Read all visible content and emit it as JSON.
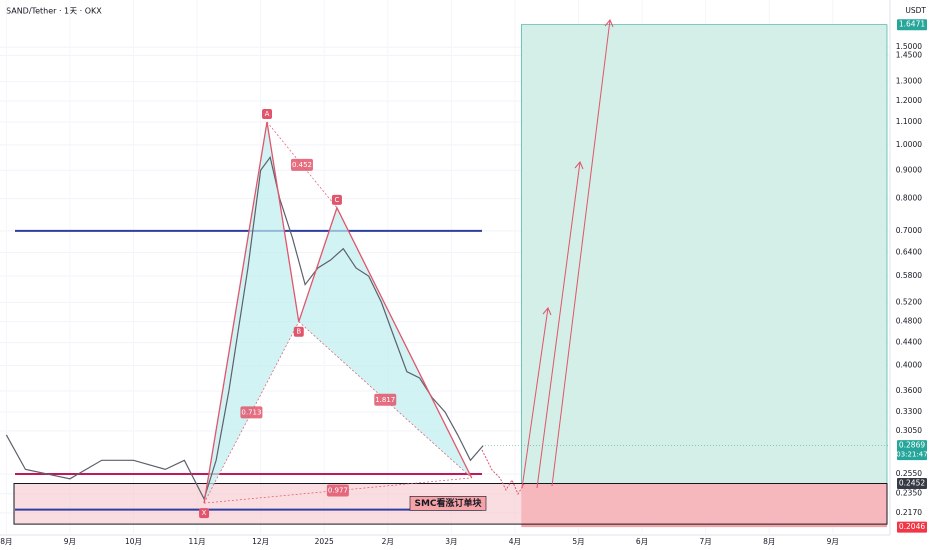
{
  "chart_data": {
    "type": "line",
    "title": "SAND/Tether · 1天 · OKX",
    "currency": "USDT",
    "log_scale": true,
    "grid": true,
    "xlim": [
      -0.1,
      13.9
    ],
    "ylim": [
      0.198,
      1.825
    ],
    "xticks": [
      {
        "value": 0,
        "label": "8月"
      },
      {
        "value": 1,
        "label": "9月"
      },
      {
        "value": 2,
        "label": "10月"
      },
      {
        "value": 3,
        "label": "11月"
      },
      {
        "value": 4,
        "label": "12月"
      },
      {
        "value": 5,
        "label": "2025"
      },
      {
        "value": 6,
        "label": "2月"
      },
      {
        "value": 7,
        "label": "3月"
      },
      {
        "value": 8,
        "label": "4月"
      },
      {
        "value": 9,
        "label": "5月"
      },
      {
        "value": 10,
        "label": "6月"
      },
      {
        "value": 11,
        "label": "7月"
      },
      {
        "value": 12,
        "label": "8月"
      },
      {
        "value": 13,
        "label": "9月"
      }
    ],
    "yticks": [
      {
        "value": 1.5,
        "label": "1.5000"
      },
      {
        "value": 1.45,
        "label": "1.4500"
      },
      {
        "value": 1.3,
        "label": "1.3000"
      },
      {
        "value": 1.2,
        "label": "1.2000"
      },
      {
        "value": 1.1,
        "label": "1.1000"
      },
      {
        "value": 1.0,
        "label": "1.0000"
      },
      {
        "value": 0.9,
        "label": "0.9000"
      },
      {
        "value": 0.8,
        "label": "0.8000"
      },
      {
        "value": 0.7,
        "label": "0.7000"
      },
      {
        "value": 0.64,
        "label": "0.6400"
      },
      {
        "value": 0.58,
        "label": "0.5800"
      },
      {
        "value": 0.52,
        "label": "0.5200"
      },
      {
        "value": 0.48,
        "label": "0.4800"
      },
      {
        "value": 0.44,
        "label": "0.4400"
      },
      {
        "value": 0.4,
        "label": "0.4000"
      },
      {
        "value": 0.36,
        "label": "0.3600"
      },
      {
        "value": 0.33,
        "label": "0.3300"
      },
      {
        "value": 0.305,
        "label": "0.3050"
      },
      {
        "value": 0.255,
        "label": "0.2550"
      },
      {
        "value": 0.235,
        "label": "0.2350"
      },
      {
        "value": 0.217,
        "label": "0.2170"
      }
    ],
    "color": "#5d606b",
    "x": [
      0,
      0.3,
      1,
      1.5,
      2,
      2.5,
      2.8,
      3.11,
      3.3,
      3.5,
      3.8,
      4.0,
      4.15,
      4.3,
      4.5,
      4.7,
      4.9,
      5.1,
      5.3,
      5.5,
      5.7,
      5.9,
      6.1,
      6.3,
      6.5,
      6.7,
      6.9,
      7.1,
      7.3,
      7.5
    ],
    "values": [
      0.3,
      0.26,
      0.25,
      0.27,
      0.27,
      0.26,
      0.27,
      0.23,
      0.27,
      0.36,
      0.6,
      0.9,
      0.95,
      0.8,
      0.68,
      0.56,
      0.6,
      0.62,
      0.65,
      0.6,
      0.58,
      0.52,
      0.45,
      0.39,
      0.38,
      0.35,
      0.33,
      0.3,
      0.27,
      0.2869
    ],
    "pattern": {
      "color": "#e0556b",
      "fill": "#bfeef0",
      "points": [
        {
          "label": "X",
          "x": 3.11,
          "value": 0.226
        },
        {
          "label": "A",
          "x": 4.1,
          "value": 1.1
        },
        {
          "label": "B",
          "x": 4.6,
          "value": 0.48
        },
        {
          "label": "C",
          "x": 5.2,
          "value": 0.77
        },
        {
          "label": null,
          "x": 7.32,
          "value": 0.251
        }
      ],
      "ratios": [
        0.452,
        0.713,
        1.817,
        0.977
      ]
    },
    "levels": [
      {
        "value": 0.7,
        "color": "#2e3fa0"
      },
      {
        "value": 0.255,
        "color": "#c2185b"
      },
      {
        "value": 0.22,
        "color": "#2e3fa0"
      }
    ],
    "order_block": {
      "label": "SMC看涨订单块",
      "color": "#f7c6cc"
    },
    "target_start": 8.1,
    "price_tags": [
      {
        "value": 1.6471,
        "label": "1.6471",
        "color": "#26a69a"
      },
      {
        "value": 0.2869,
        "label": "0.2869",
        "countdown": "03:21:47",
        "color": "#26a69a"
      },
      {
        "value": 0.2452,
        "label": "0.2452",
        "color": "#363a45"
      },
      {
        "value": 0.2046,
        "label": "0.2046",
        "color": "#f23645"
      }
    ]
  }
}
